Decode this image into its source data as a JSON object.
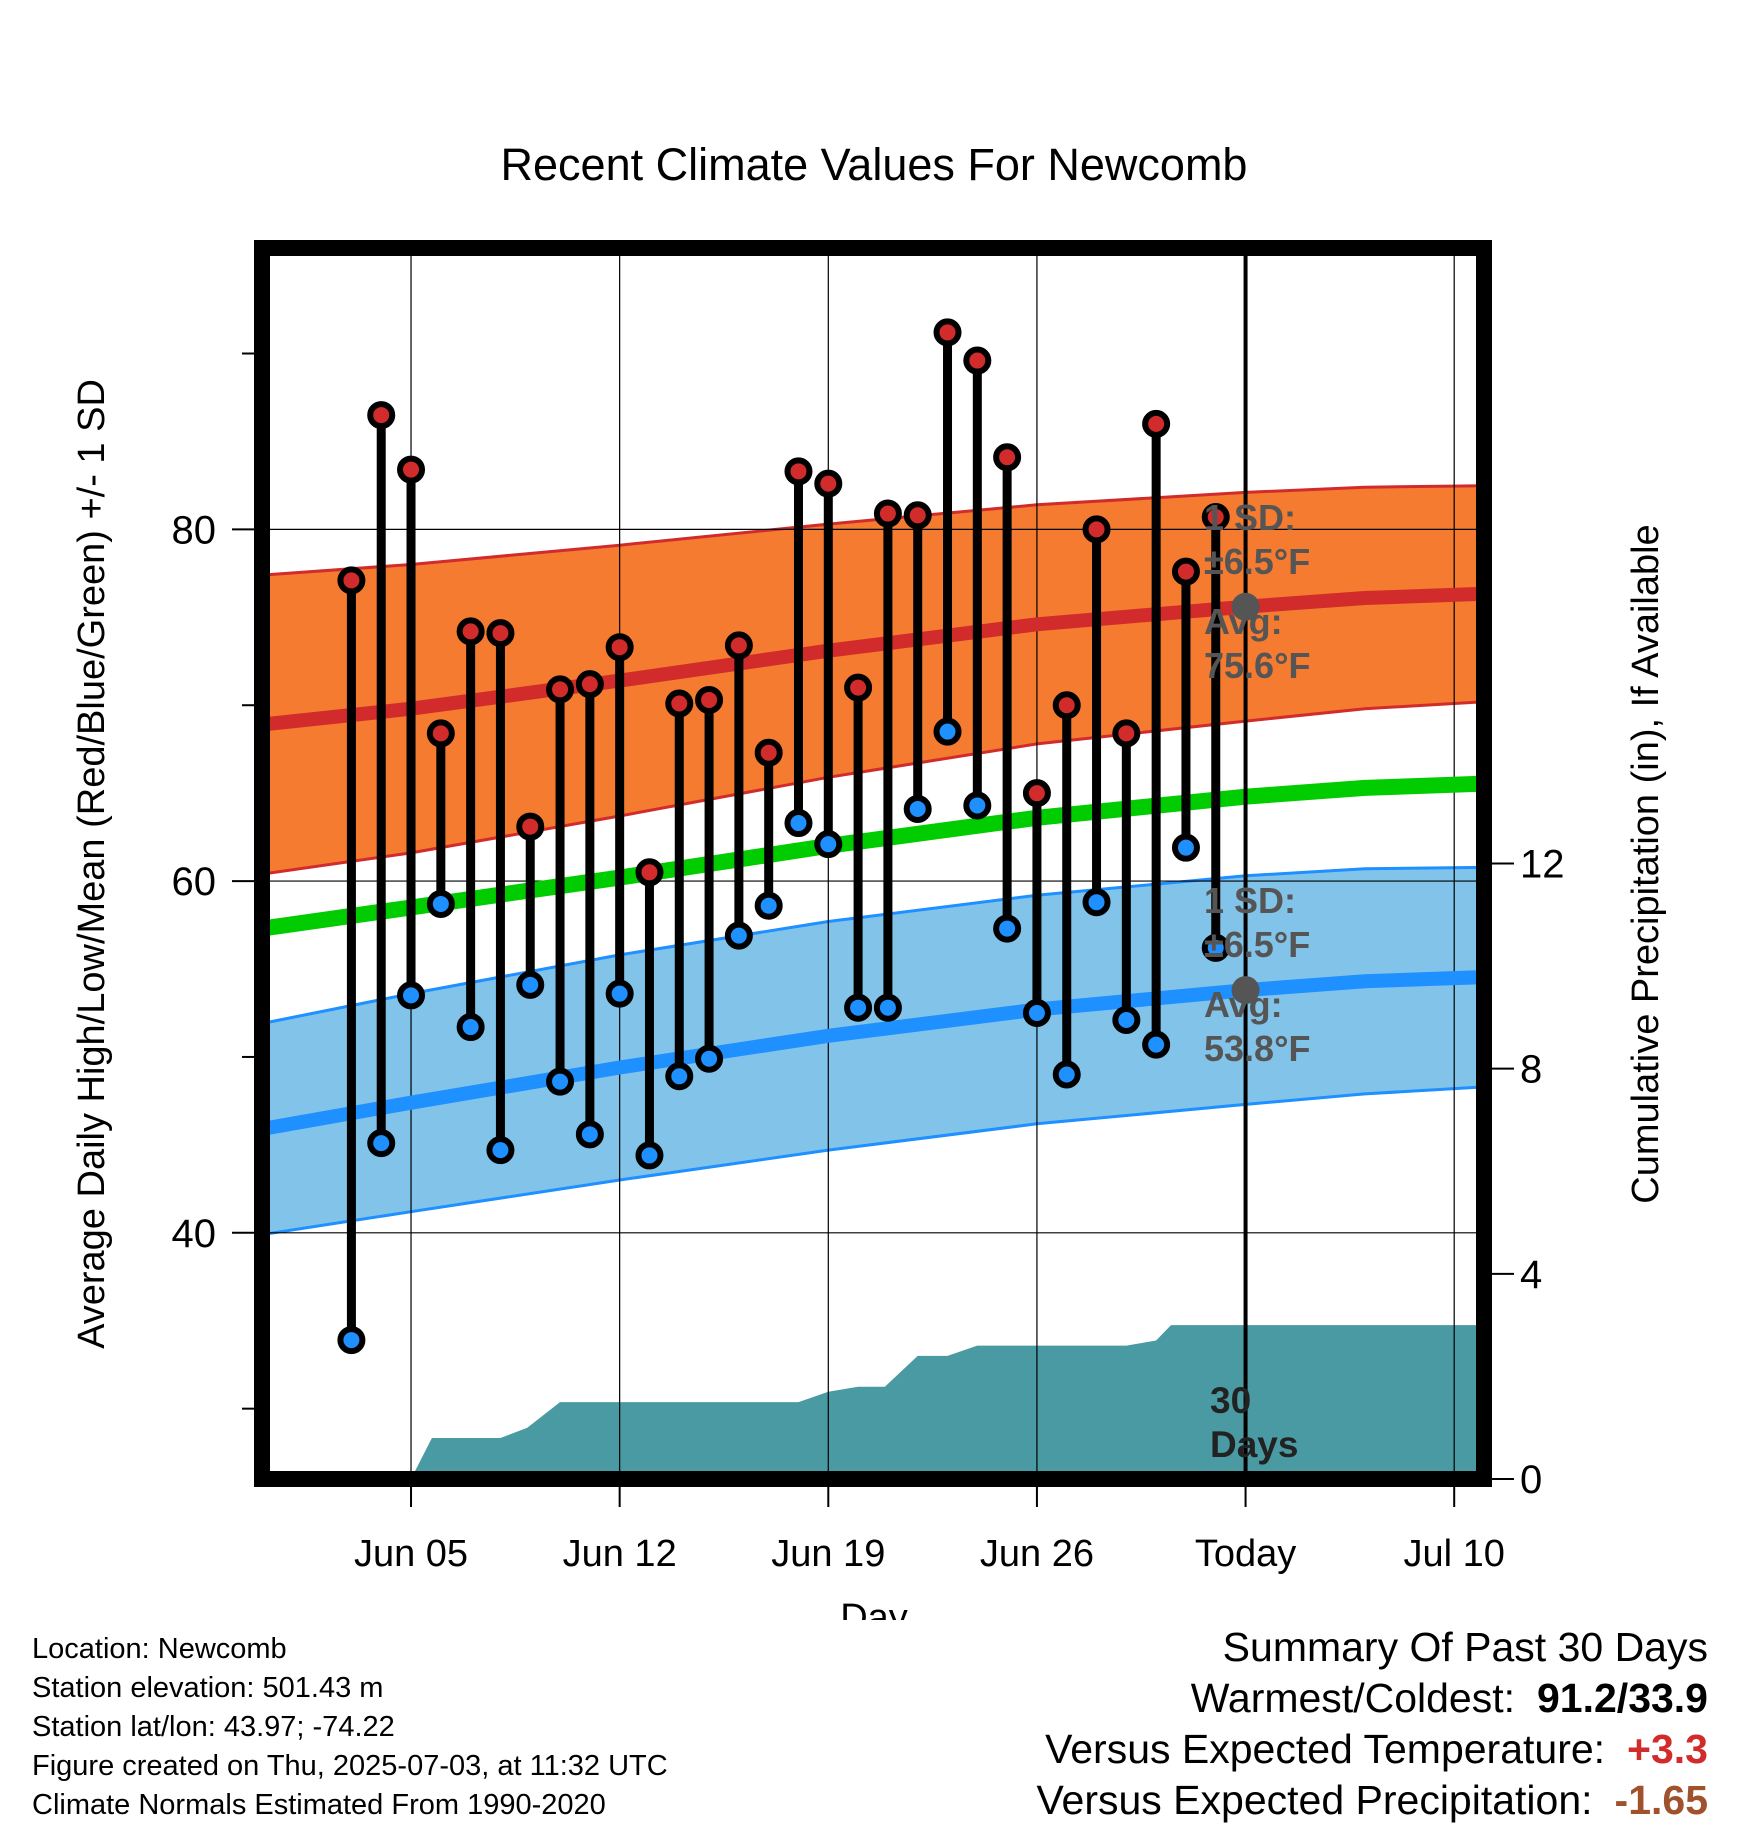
{
  "chart_data": {
    "type": "line",
    "title": "Recent Climate Values For Newcomb",
    "xlabel": "Day",
    "ylabel": "Average Daily High/Low/Mean (Red/Blue/Green) +/- 1 SD",
    "y2label": "Cumulative Precipitation (in), If Available",
    "ylim": [
      26,
      96
    ],
    "y_ticks": [
      40,
      60,
      80
    ],
    "y2lim": [
      0,
      24
    ],
    "y2_ticks": [
      0,
      4,
      8,
      12
    ],
    "x_range_days": [
      -33,
      8
    ],
    "x_ticks": [
      {
        "day": -28,
        "label": "Jun 05"
      },
      {
        "day": -21,
        "label": "Jun 12"
      },
      {
        "day": -14,
        "label": "Jun 19"
      },
      {
        "day": -7,
        "label": "Jun 26"
      },
      {
        "day": 0,
        "label": "Today"
      },
      {
        "day": 7,
        "label": "Jul 10"
      }
    ],
    "grid": true,
    "colors": {
      "high": "#d22b2b",
      "low": "#1e90ff",
      "mean": "#00cc00",
      "high_band": "#f47b30",
      "low_band": "#82c3ea",
      "precip": "#4a9aa3",
      "annotation": "#555555"
    },
    "daily": {
      "days": [
        -30,
        -29,
        -28,
        -27,
        -26,
        -25,
        -24,
        -23,
        -22,
        -21,
        -20,
        -19,
        -18,
        -17,
        -16,
        -15,
        -14,
        -13,
        -12,
        -11,
        -10,
        -9,
        -8,
        -7,
        -6,
        -5,
        -4,
        -3,
        -2,
        -1
      ],
      "highs": [
        77.1,
        86.5,
        83.4,
        68.4,
        74.2,
        74.1,
        63.1,
        70.9,
        71.2,
        73.3,
        60.5,
        70.1,
        70.3,
        73.4,
        67.3,
        83.3,
        82.6,
        71.0,
        80.9,
        80.8,
        91.2,
        89.6,
        84.1,
        65.0,
        70.0,
        80.0,
        68.4,
        86.0,
        77.6,
        80.7
      ],
      "lows": [
        33.9,
        45.1,
        53.5,
        58.7,
        51.7,
        44.7,
        54.1,
        48.6,
        45.6,
        53.6,
        44.4,
        48.9,
        49.9,
        56.9,
        58.6,
        63.3,
        62.1,
        52.8,
        52.8,
        64.1,
        68.5,
        64.3,
        57.3,
        52.5,
        49.0,
        58.8,
        52.1,
        50.7,
        61.9,
        56.2
      ]
    },
    "normals": {
      "days": [
        -33,
        -28,
        -21,
        -14,
        -7,
        0,
        4,
        9
      ],
      "mean": [
        57.3,
        58.5,
        60.2,
        62.0,
        63.6,
        64.8,
        65.3,
        65.6
      ],
      "high_avg": [
        68.9,
        69.8,
        71.4,
        73.1,
        74.6,
        75.6,
        76.1,
        76.4
      ],
      "high_sd": [
        8.5,
        8.2,
        7.7,
        7.2,
        6.8,
        6.5,
        6.3,
        6.1
      ],
      "low_avg": [
        45.9,
        47.4,
        49.4,
        51.2,
        52.7,
        53.8,
        54.3,
        54.6
      ],
      "low_sd": [
        6.0,
        6.2,
        6.4,
        6.5,
        6.5,
        6.5,
        6.4,
        6.2
      ]
    },
    "precipitation": {
      "days": [
        -29.5,
        -28,
        -27.3,
        -26,
        -25,
        -24.1,
        -23,
        -22,
        -21,
        -20,
        -19,
        -18,
        -17,
        -16,
        -15,
        -14,
        -13,
        -12.1,
        -11,
        -10,
        -9,
        -8,
        -7,
        -6,
        -5,
        -4,
        -3,
        -2.5,
        -2,
        -1,
        0,
        8
      ],
      "cumulative": [
        0,
        0,
        0.8,
        0.8,
        0.8,
        1.0,
        1.5,
        1.5,
        1.5,
        1.5,
        1.5,
        1.5,
        1.5,
        1.5,
        1.5,
        1.7,
        1.8,
        1.8,
        2.4,
        2.4,
        2.6,
        2.6,
        2.6,
        2.6,
        2.6,
        2.6,
        2.7,
        3.0,
        3.0,
        3.0,
        3.0,
        3.0
      ]
    },
    "annotations": {
      "high": {
        "sd_label": "1 SD:",
        "sd_value": "±6.5°F",
        "avg_label": "Avg:",
        "avg_value": "75.6°F",
        "avg": 75.6
      },
      "low": {
        "sd_label": "1 SD:",
        "sd_value": "±6.5°F",
        "avg_label": "Avg:",
        "avg_value": "53.8°F",
        "avg": 53.8
      },
      "window_line1": "30",
      "window_line2": "Days"
    }
  },
  "info": {
    "location": "Location: Newcomb",
    "elevation": "Station elevation: 501.43 m",
    "latlon": "Station lat/lon: 43.97; -74.22",
    "created": "Figure created on Thu, 2025-07-03, at 11:32 UTC",
    "normals": "Climate Normals Estimated From 1990-2020"
  },
  "summary": {
    "title": "Summary Of Past 30 Days",
    "warmest_label": "Warmest/Coldest:",
    "warmest_value": "91.2/33.9",
    "temp_label": "Versus Expected Temperature:",
    "temp_value": "+3.3",
    "temp_color": "#d22b2b",
    "precip_label": "Versus Expected Precipitation:",
    "precip_value": "-1.65",
    "precip_color": "#a0522d"
  }
}
